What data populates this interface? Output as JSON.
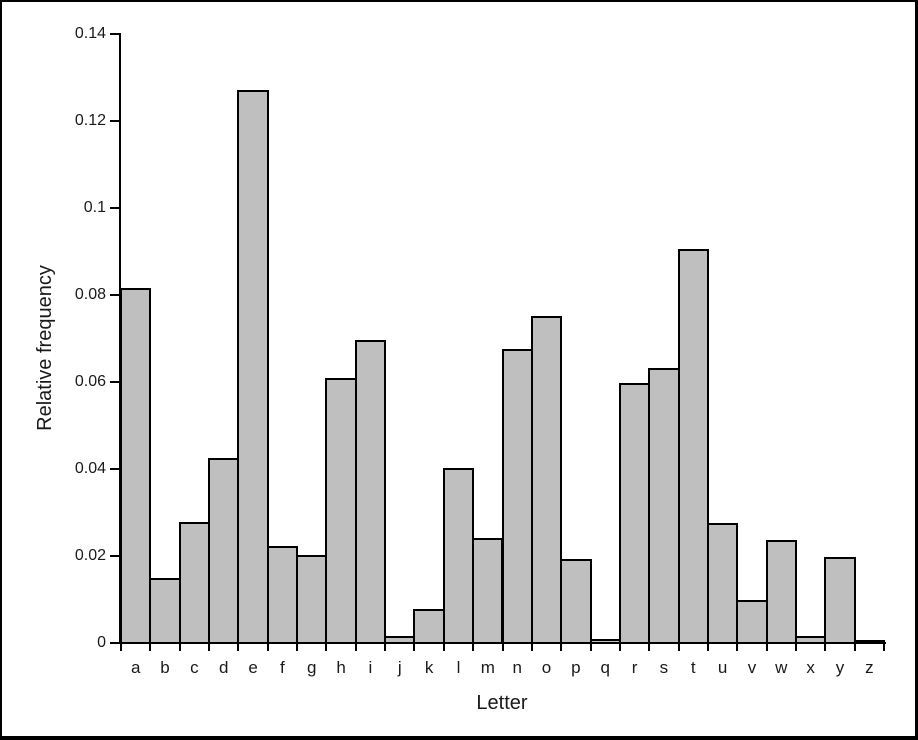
{
  "chart_data": {
    "type": "bar",
    "title": "",
    "xlabel": "Letter",
    "ylabel": "Relative frequency",
    "categories": [
      "a",
      "b",
      "c",
      "d",
      "e",
      "f",
      "g",
      "h",
      "i",
      "j",
      "k",
      "l",
      "m",
      "n",
      "o",
      "p",
      "q",
      "r",
      "s",
      "t",
      "u",
      "v",
      "w",
      "x",
      "y",
      "z"
    ],
    "values": [
      0.08167,
      0.01492,
      0.02782,
      0.04253,
      0.12702,
      0.02228,
      0.02015,
      0.06094,
      0.06966,
      0.00153,
      0.00772,
      0.04025,
      0.02406,
      0.06749,
      0.07507,
      0.01929,
      0.00095,
      0.05987,
      0.06327,
      0.09056,
      0.02758,
      0.00978,
      0.0236,
      0.0015,
      0.01974,
      0.00074
    ],
    "ylim": [
      0,
      0.14
    ],
    "yticks": [
      0,
      0.02,
      0.04,
      0.06,
      0.08,
      0.1,
      0.12,
      0.14
    ],
    "ytick_labels": [
      "0",
      "0.02",
      "0.04",
      "0.06",
      "0.08",
      "0.1",
      "0.12",
      "0.14"
    ],
    "grid": false,
    "legend": "none",
    "colors": {
      "bar_fill": "#bfbfbf",
      "bar_border": "#000000",
      "axis": "#000000",
      "text": "#1a1a1a",
      "background": "#ffffff",
      "frame_border": "#000000"
    }
  }
}
